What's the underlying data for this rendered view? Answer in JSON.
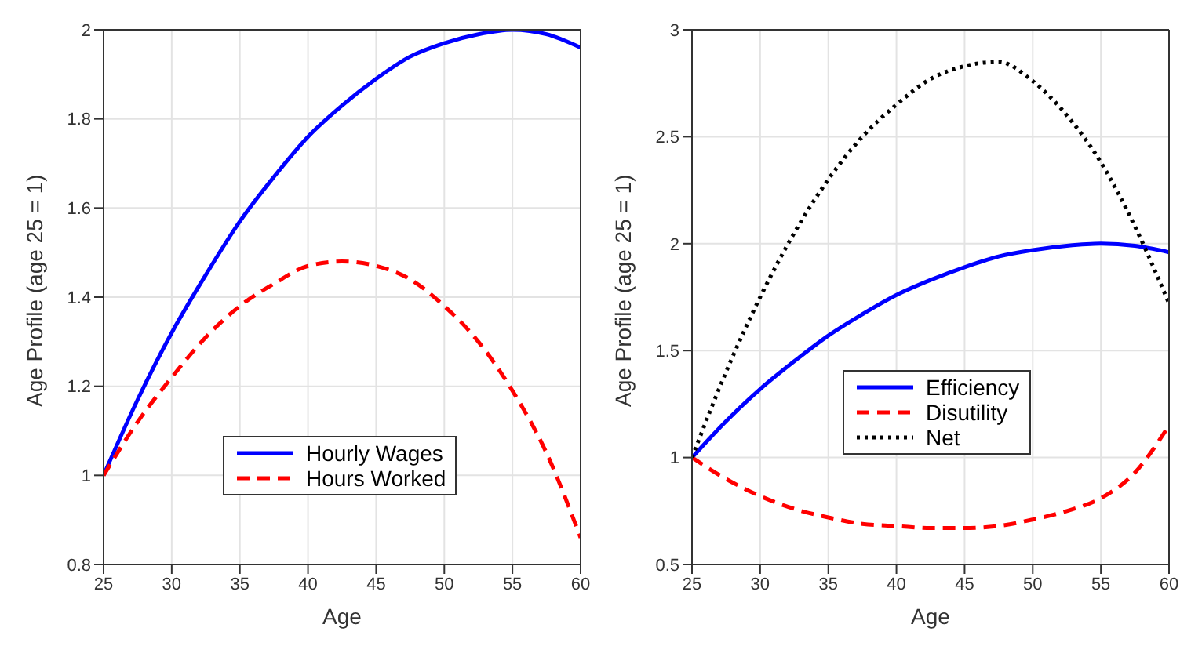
{
  "chart_data": [
    {
      "type": "line",
      "xlabel": "Age",
      "ylabel": "Age Profile  (age 25 = 1)",
      "x": [
        25,
        27.5,
        30,
        32.5,
        35,
        37.5,
        40,
        42.5,
        45,
        47.5,
        50,
        52.5,
        55,
        57.5,
        60
      ],
      "xlim": [
        25,
        60
      ],
      "xticks": [
        25,
        30,
        35,
        40,
        45,
        50,
        55,
        60
      ],
      "ylim": [
        0.8,
        2
      ],
      "yticks": [
        0.8,
        1,
        1.2,
        1.4,
        1.6,
        1.8,
        2
      ],
      "grid": true,
      "legend": "bottom",
      "marker": "none",
      "series": [
        {
          "name": "Hourly Wages",
          "color": "#0000ff",
          "line_style": "solid",
          "values": [
            1.0,
            1.17,
            1.32,
            1.45,
            1.57,
            1.67,
            1.76,
            1.83,
            1.89,
            1.94,
            1.97,
            1.99,
            2.0,
            1.99,
            1.96
          ]
        },
        {
          "name": "Hours Worked",
          "color": "#ff0000",
          "line_style": "dashed",
          "values": [
            1.0,
            1.12,
            1.22,
            1.31,
            1.38,
            1.43,
            1.47,
            1.48,
            1.47,
            1.44,
            1.38,
            1.3,
            1.19,
            1.05,
            0.86
          ]
        }
      ]
    },
    {
      "type": "line",
      "xlabel": "Age",
      "ylabel": "Age Profile  (age 25 = 1)",
      "x": [
        25,
        27.5,
        30,
        32.5,
        35,
        37.5,
        40,
        42.5,
        45,
        47.5,
        50,
        52.5,
        55,
        57.5,
        60
      ],
      "xlim": [
        25,
        60
      ],
      "xticks": [
        25,
        30,
        35,
        40,
        45,
        50,
        55,
        60
      ],
      "ylim": [
        0.5,
        3
      ],
      "yticks": [
        0.5,
        1,
        1.5,
        2,
        2.5,
        3
      ],
      "grid": true,
      "legend": "center",
      "marker": "none",
      "series": [
        {
          "name": "Efficiency",
          "color": "#0000ff",
          "line_style": "solid",
          "values": [
            1.0,
            1.17,
            1.32,
            1.45,
            1.57,
            1.67,
            1.76,
            1.83,
            1.89,
            1.94,
            1.97,
            1.99,
            2.0,
            1.99,
            1.96
          ]
        },
        {
          "name": "Disutility",
          "color": "#ff0000",
          "line_style": "dashed",
          "values": [
            1.0,
            0.9,
            0.82,
            0.76,
            0.72,
            0.69,
            0.68,
            0.67,
            0.67,
            0.68,
            0.71,
            0.75,
            0.81,
            0.93,
            1.15
          ]
        },
        {
          "name": "Net",
          "color": "#000000",
          "line_style": "dotted",
          "values": [
            1.0,
            1.4,
            1.75,
            2.05,
            2.3,
            2.5,
            2.65,
            2.77,
            2.83,
            2.85,
            2.76,
            2.6,
            2.38,
            2.08,
            1.72
          ]
        }
      ]
    }
  ]
}
